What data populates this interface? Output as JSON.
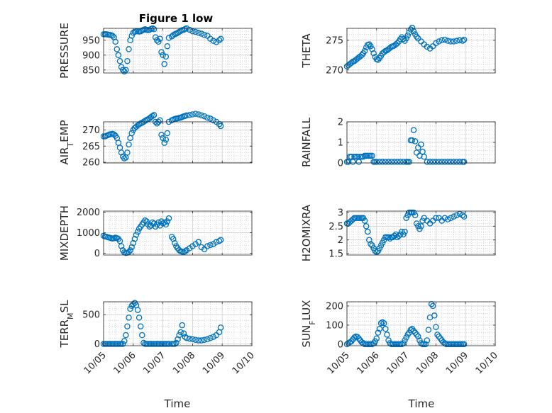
{
  "figure_title": "Figure 1 low",
  "colors": {
    "marker": "#0072BD",
    "axis": "#262626",
    "grid": "#b0b0b0"
  },
  "chart_data": [
    {
      "type": "scatter",
      "ylabel": "PRESSURE",
      "title": "Figure 1 low",
      "ylim": [
        840,
        990
      ],
      "yticks": [
        850,
        900,
        950
      ],
      "yticklabels": [
        "850",
        "900",
        "950"
      ],
      "xlim": [
        0,
        5
      ],
      "xticks": [
        0,
        1,
        2,
        3,
        4,
        5
      ],
      "xticklabels": [
        "10/05",
        "10/06",
        "10/07",
        "10/08",
        "10/09",
        "10/10"
      ],
      "grid": true,
      "x": [
        0,
        0.05,
        0.1,
        0.15,
        0.2,
        0.25,
        0.3,
        0.35,
        0.4,
        0.45,
        0.5,
        0.55,
        0.6,
        0.65,
        0.7,
        0.75,
        0.8,
        0.85,
        0.9,
        0.95,
        1.0,
        1.05,
        1.1,
        1.15,
        1.2,
        1.25,
        1.3,
        1.35,
        1.4,
        1.45,
        1.5,
        1.55,
        1.6,
        1.65,
        1.7,
        1.75,
        1.8,
        1.85,
        1.9,
        1.95,
        2.0,
        2.05,
        2.1,
        2.15,
        2.2,
        2.3,
        2.35,
        2.4,
        2.45,
        2.5,
        2.55,
        2.6,
        2.65,
        2.7,
        2.75,
        2.8,
        2.9,
        3.0,
        3.1,
        3.2,
        3.3,
        3.4,
        3.5,
        3.6,
        3.7,
        3.8,
        3.9,
        3.95
      ],
      "y": [
        970,
        970,
        970,
        969,
        968,
        967,
        965,
        960,
        945,
        920,
        900,
        880,
        860,
        850,
        845,
        850,
        880,
        920,
        950,
        965,
        975,
        978,
        980,
        980,
        979,
        980,
        983,
        985,
        987,
        985,
        984,
        985,
        988,
        990,
        987,
        960,
        950,
        945,
        955,
        910,
        900,
        870,
        895,
        930,
        958,
        963,
        967,
        970,
        972,
        975,
        978,
        981,
        984,
        985,
        988,
        990,
        985,
        980,
        978,
        975,
        972,
        968,
        965,
        955,
        948,
        944,
        950,
        955
      ]
    },
    {
      "type": "scatter",
      "ylabel": "THETA",
      "ylim": [
        269.5,
        277
      ],
      "yticks": [
        270,
        275
      ],
      "yticklabels": [
        "270",
        "275"
      ],
      "xlim": [
        0,
        5
      ],
      "xticks": [
        0,
        1,
        2,
        3,
        4,
        5
      ],
      "xticklabels": [
        "10/05",
        "10/06",
        "10/07",
        "10/08",
        "10/09",
        "10/10"
      ],
      "grid": true,
      "x": [
        0,
        0.05,
        0.1,
        0.15,
        0.2,
        0.25,
        0.3,
        0.35,
        0.4,
        0.45,
        0.5,
        0.55,
        0.6,
        0.65,
        0.7,
        0.75,
        0.8,
        0.85,
        0.9,
        0.95,
        1.0,
        1.05,
        1.1,
        1.15,
        1.2,
        1.25,
        1.3,
        1.35,
        1.4,
        1.45,
        1.5,
        1.55,
        1.6,
        1.65,
        1.7,
        1.75,
        1.8,
        1.85,
        1.9,
        1.95,
        2.0,
        2.05,
        2.1,
        2.15,
        2.2,
        2.25,
        2.3,
        2.35,
        2.4,
        2.5,
        2.6,
        2.7,
        2.8,
        2.9,
        3.0,
        3.1,
        3.2,
        3.3,
        3.4,
        3.5,
        3.6,
        3.7,
        3.8,
        3.9,
        3.95
      ],
      "y": [
        270.6,
        270.8,
        271.0,
        271.2,
        271.4,
        271.5,
        271.7,
        271.9,
        272.1,
        272.3,
        272.5,
        272.8,
        273.2,
        273.8,
        274.2,
        274.3,
        274.0,
        273.5,
        272.8,
        272.2,
        271.8,
        271.7,
        272.0,
        272.4,
        272.8,
        273.0,
        273.2,
        273.3,
        273.5,
        273.7,
        273.9,
        274.0,
        274.1,
        274.3,
        274.5,
        274.8,
        275.2,
        275.5,
        275.2,
        274.9,
        275.3,
        275.8,
        276.3,
        276.8,
        277.1,
        276.5,
        276.0,
        275.6,
        275.3,
        274.8,
        274.3,
        273.9,
        273.6,
        274.0,
        274.5,
        274.8,
        275.0,
        275.1,
        274.9,
        274.8,
        274.8,
        274.9,
        275.0,
        274.9,
        275.1
      ]
    },
    {
      "type": "scatter",
      "ylabel": "AIR_TEMP",
      "ylim": [
        259.8,
        272.5
      ],
      "yticks": [
        260,
        265,
        270
      ],
      "yticklabels": [
        "260",
        "265",
        "270"
      ],
      "xlim": [
        0,
        5
      ],
      "xticks": [
        0,
        1,
        2,
        3,
        4,
        5
      ],
      "xticklabels": [
        "10/05",
        "10/06",
        "10/07",
        "10/08",
        "10/09",
        "10/10"
      ],
      "grid": true,
      "x": [
        0,
        0.05,
        0.1,
        0.15,
        0.2,
        0.25,
        0.3,
        0.35,
        0.4,
        0.45,
        0.5,
        0.55,
        0.6,
        0.65,
        0.7,
        0.75,
        0.8,
        0.85,
        0.9,
        0.95,
        1.0,
        1.05,
        1.1,
        1.15,
        1.2,
        1.25,
        1.3,
        1.35,
        1.4,
        1.45,
        1.5,
        1.55,
        1.6,
        1.65,
        1.7,
        1.75,
        1.8,
        1.85,
        1.9,
        1.95,
        2.0,
        2.05,
        2.1,
        2.15,
        2.2,
        2.3,
        2.35,
        2.4,
        2.45,
        2.5,
        2.55,
        2.6,
        2.65,
        2.7,
        2.75,
        2.8,
        2.9,
        3.0,
        3.1,
        3.2,
        3.3,
        3.4,
        3.5,
        3.6,
        3.7,
        3.8,
        3.9,
        3.95
      ],
      "y": [
        268,
        268,
        268.2,
        268.4,
        268.6,
        268.7,
        268.8,
        268.6,
        268.2,
        267.5,
        266,
        264.5,
        263,
        261.8,
        261.2,
        261.5,
        263,
        265.5,
        267.5,
        269,
        270,
        270.6,
        271,
        271.4,
        271.7,
        272,
        272.2,
        272.5,
        272.8,
        273.1,
        273.3,
        273.6,
        274,
        274.3,
        274.6,
        272.5,
        272,
        272.5,
        273,
        268.5,
        267.5,
        266,
        267,
        269,
        272.5,
        273,
        273.2,
        273.4,
        273.5,
        273.6,
        273.7,
        273.8,
        274,
        274.2,
        274.3,
        274.5,
        274.6,
        274.8,
        275,
        274.8,
        274.5,
        274.2,
        273.8,
        273.5,
        273,
        272.5,
        271.8,
        271.2
      ]
    },
    {
      "type": "scatter",
      "ylabel": "RAINFALL",
      "ylim": [
        0,
        2
      ],
      "yticks": [
        0,
        1,
        2
      ],
      "yticklabels": [
        "0",
        "1",
        "2"
      ],
      "xlim": [
        0,
        5
      ],
      "xticks": [
        0,
        1,
        2,
        3,
        4,
        5
      ],
      "xticklabels": [
        "10/05",
        "10/06",
        "10/07",
        "10/08",
        "10/09",
        "10/10"
      ],
      "grid": true,
      "x": [
        0,
        0.05,
        0.1,
        0.15,
        0.2,
        0.25,
        0.3,
        0.35,
        0.4,
        0.45,
        0.5,
        0.55,
        0.6,
        0.65,
        0.7,
        0.75,
        0.8,
        0.85,
        0.9,
        0.95,
        1.0,
        1.1,
        1.2,
        1.3,
        1.4,
        1.5,
        1.6,
        1.7,
        1.8,
        1.9,
        2.0,
        2.05,
        2.1,
        2.15,
        2.2,
        2.25,
        2.3,
        2.35,
        2.4,
        2.45,
        2.5,
        2.55,
        2.6,
        2.7,
        2.8,
        2.9,
        3.0,
        3.1,
        3.2,
        3.3,
        3.4,
        3.5,
        3.6,
        3.7,
        3.8,
        3.9,
        3.95
      ],
      "y": [
        0.05,
        0.05,
        0.3,
        0.3,
        0.05,
        0.3,
        0.3,
        0.3,
        0.05,
        0.3,
        0.3,
        0.3,
        0.35,
        0.35,
        0.35,
        0.35,
        0.35,
        0.35,
        0.05,
        0.05,
        0.05,
        0.05,
        0.05,
        0.05,
        0.05,
        0.05,
        0.05,
        0.05,
        0.05,
        0.05,
        0.05,
        0.05,
        0.05,
        1.1,
        1.1,
        1.6,
        1.05,
        0.5,
        0.75,
        0.35,
        0.9,
        0.55,
        0.3,
        0.05,
        0.05,
        0.05,
        0.05,
        0.05,
        0.05,
        0.05,
        0.05,
        0.05,
        0.05,
        0.05,
        0.05,
        0.05,
        0.05
      ]
    },
    {
      "type": "scatter",
      "ylabel": "MIXDEPTH",
      "ylim": [
        -80,
        2050
      ],
      "yticks": [
        0,
        1000,
        2000
      ],
      "yticklabels": [
        "0",
        "1000",
        "2000"
      ],
      "xlim": [
        0,
        5
      ],
      "xticks": [
        0,
        1,
        2,
        3,
        4,
        5
      ],
      "xticklabels": [
        "10/05",
        "10/06",
        "10/07",
        "10/08",
        "10/09",
        "10/10"
      ],
      "grid": true,
      "x": [
        0,
        0.05,
        0.1,
        0.15,
        0.2,
        0.25,
        0.3,
        0.35,
        0.4,
        0.45,
        0.5,
        0.55,
        0.6,
        0.65,
        0.7,
        0.75,
        0.8,
        0.85,
        0.9,
        0.95,
        1.0,
        1.05,
        1.1,
        1.15,
        1.2,
        1.25,
        1.3,
        1.35,
        1.4,
        1.45,
        1.5,
        1.55,
        1.6,
        1.65,
        1.7,
        1.75,
        1.8,
        1.85,
        1.9,
        1.95,
        2.0,
        2.05,
        2.1,
        2.15,
        2.2,
        2.3,
        2.35,
        2.4,
        2.45,
        2.5,
        2.55,
        2.6,
        2.65,
        2.7,
        2.75,
        2.8,
        2.9,
        3.0,
        3.1,
        3.2,
        3.3,
        3.4,
        3.5,
        3.6,
        3.7,
        3.8,
        3.9,
        3.95
      ],
      "y": [
        850,
        820,
        800,
        780,
        760,
        740,
        720,
        730,
        760,
        740,
        700,
        600,
        350,
        150,
        50,
        20,
        30,
        60,
        150,
        300,
        500,
        700,
        900,
        1050,
        1200,
        1300,
        1400,
        1500,
        1600,
        1550,
        1400,
        1300,
        1350,
        1500,
        1450,
        1300,
        1400,
        1500,
        1350,
        1550,
        1450,
        1500,
        1400,
        1550,
        1700,
        800,
        700,
        500,
        350,
        250,
        150,
        100,
        80,
        60,
        100,
        150,
        250,
        350,
        450,
        550,
        300,
        200,
        350,
        400,
        450,
        550,
        600,
        650
      ]
    },
    {
      "type": "scatter",
      "ylabel": "H2OMIXRA",
      "ylim": [
        1.45,
        3.05
      ],
      "yticks": [
        1.5,
        2,
        2.5,
        3
      ],
      "yticklabels": [
        "1.5",
        "2",
        "2.5",
        "3"
      ],
      "xlim": [
        0,
        5
      ],
      "xticks": [
        0,
        1,
        2,
        3,
        4,
        5
      ],
      "xticklabels": [
        "10/05",
        "10/06",
        "10/07",
        "10/08",
        "10/09",
        "10/10"
      ],
      "grid": true,
      "x": [
        0,
        0.05,
        0.1,
        0.15,
        0.2,
        0.25,
        0.3,
        0.35,
        0.4,
        0.45,
        0.5,
        0.55,
        0.6,
        0.65,
        0.7,
        0.75,
        0.8,
        0.85,
        0.9,
        0.95,
        1.0,
        1.05,
        1.1,
        1.15,
        1.2,
        1.25,
        1.3,
        1.35,
        1.4,
        1.45,
        1.5,
        1.55,
        1.6,
        1.65,
        1.7,
        1.75,
        1.8,
        1.85,
        1.9,
        1.95,
        2.0,
        2.05,
        2.1,
        2.15,
        2.2,
        2.25,
        2.3,
        2.35,
        2.4,
        2.45,
        2.5,
        2.55,
        2.6,
        2.7,
        2.8,
        2.9,
        3.0,
        3.1,
        3.2,
        3.3,
        3.4,
        3.5,
        3.6,
        3.7,
        3.8,
        3.9,
        3.95
      ],
      "y": [
        2.6,
        2.6,
        2.65,
        2.7,
        2.75,
        2.8,
        2.8,
        2.8,
        2.8,
        2.8,
        2.8,
        2.8,
        2.7,
        2.5,
        2.3,
        2.0,
        1.85,
        1.8,
        1.7,
        1.6,
        1.55,
        1.6,
        1.7,
        1.8,
        1.9,
        2.0,
        2.1,
        2.1,
        2.1,
        2.05,
        2.1,
        2.1,
        2.15,
        2.2,
        2.1,
        2.15,
        2.2,
        2.3,
        2.2,
        2.3,
        2.8,
        2.9,
        3.0,
        3.0,
        3.0,
        3.0,
        2.9,
        2.6,
        2.5,
        2.4,
        2.5,
        2.7,
        2.8,
        2.7,
        2.6,
        2.7,
        2.8,
        2.8,
        2.7,
        2.8,
        2.75,
        2.8,
        2.85,
        2.9,
        2.95,
        2.9,
        2.85
      ]
    },
    {
      "type": "scatter",
      "ylabel": "TERR_MSL",
      "ylim": [
        -30,
        720
      ],
      "yticks": [
        0,
        500
      ],
      "yticklabels": [
        "0",
        "500"
      ],
      "xlim": [
        0,
        5
      ],
      "xticks": [
        0,
        1,
        2,
        3,
        4,
        5
      ],
      "xticklabels": [
        "10/05",
        "10/06",
        "10/07",
        "10/08",
        "10/09",
        "10/10"
      ],
      "grid": true,
      "x": [
        0,
        0.05,
        0.1,
        0.15,
        0.2,
        0.25,
        0.3,
        0.35,
        0.4,
        0.45,
        0.5,
        0.55,
        0.6,
        0.65,
        0.7,
        0.75,
        0.8,
        0.85,
        0.9,
        0.95,
        1.0,
        1.05,
        1.1,
        1.15,
        1.2,
        1.25,
        1.3,
        1.35,
        1.4,
        1.45,
        1.5,
        1.55,
        1.6,
        1.65,
        1.7,
        1.75,
        1.8,
        1.85,
        1.9,
        1.95,
        2.0,
        2.05,
        2.1,
        2.15,
        2.2,
        2.3,
        2.35,
        2.4,
        2.45,
        2.5,
        2.55,
        2.6,
        2.65,
        2.7,
        2.75,
        2.8,
        2.9,
        3.0,
        3.1,
        3.2,
        3.3,
        3.4,
        3.5,
        3.6,
        3.7,
        3.8,
        3.9,
        3.95
      ],
      "y": [
        0,
        0,
        0,
        0,
        0,
        0,
        0,
        0,
        0,
        0,
        0,
        0,
        0,
        0,
        50,
        150,
        300,
        450,
        600,
        650,
        680,
        700,
        660,
        580,
        450,
        300,
        150,
        20,
        0,
        0,
        0,
        0,
        0,
        0,
        0,
        0,
        0,
        0,
        0,
        0,
        0,
        0,
        0,
        0,
        0,
        0,
        0,
        0,
        20,
        80,
        150,
        200,
        320,
        180,
        120,
        100,
        90,
        80,
        70,
        60,
        60,
        70,
        80,
        100,
        120,
        150,
        200,
        280
      ]
    },
    {
      "type": "scatter",
      "ylabel": "SUN_FLUX",
      "ylim": [
        -8,
        222
      ],
      "yticks": [
        0,
        100,
        200
      ],
      "yticklabels": [
        "0",
        "100",
        "200"
      ],
      "xlim": [
        0,
        5
      ],
      "xticks": [
        0,
        1,
        2,
        3,
        4,
        5
      ],
      "xticklabels": [
        "10/05",
        "10/06",
        "10/07",
        "10/08",
        "10/09",
        "10/10"
      ],
      "grid": true,
      "x": [
        0,
        0.05,
        0.1,
        0.15,
        0.2,
        0.25,
        0.3,
        0.35,
        0.4,
        0.45,
        0.5,
        0.55,
        0.6,
        0.65,
        0.7,
        0.75,
        0.8,
        0.85,
        0.9,
        0.95,
        1.0,
        1.05,
        1.1,
        1.15,
        1.2,
        1.25,
        1.3,
        1.35,
        1.4,
        1.45,
        1.5,
        1.55,
        1.6,
        1.65,
        1.7,
        1.75,
        1.8,
        1.85,
        1.9,
        1.95,
        2.0,
        2.05,
        2.1,
        2.15,
        2.2,
        2.25,
        2.3,
        2.35,
        2.4,
        2.45,
        2.5,
        2.55,
        2.6,
        2.65,
        2.7,
        2.75,
        2.8,
        2.85,
        2.9,
        2.95,
        3.0,
        3.05,
        3.1,
        3.15,
        3.2,
        3.25,
        3.3,
        3.35,
        3.4,
        3.45,
        3.5,
        3.55,
        3.6,
        3.65,
        3.7,
        3.75,
        3.8,
        3.85,
        3.9,
        3.95
      ],
      "y": [
        0,
        5,
        10,
        15,
        25,
        35,
        40,
        38,
        30,
        20,
        10,
        5,
        0,
        0,
        0,
        0,
        0,
        0,
        5,
        15,
        30,
        60,
        80,
        110,
        115,
        110,
        80,
        50,
        20,
        5,
        0,
        0,
        0,
        0,
        0,
        0,
        0,
        0,
        5,
        20,
        35,
        50,
        60,
        75,
        80,
        70,
        60,
        50,
        40,
        20,
        5,
        0,
        0,
        0,
        20,
        75,
        140,
        210,
        200,
        150,
        90,
        50,
        40,
        30,
        20,
        10,
        5,
        0,
        0,
        0,
        0,
        0,
        0,
        0,
        0,
        0,
        0,
        0,
        0,
        0
      ],
      "xlabel": "Time"
    }
  ],
  "xlabel_left": "Time",
  "xlabel_right": "Time"
}
